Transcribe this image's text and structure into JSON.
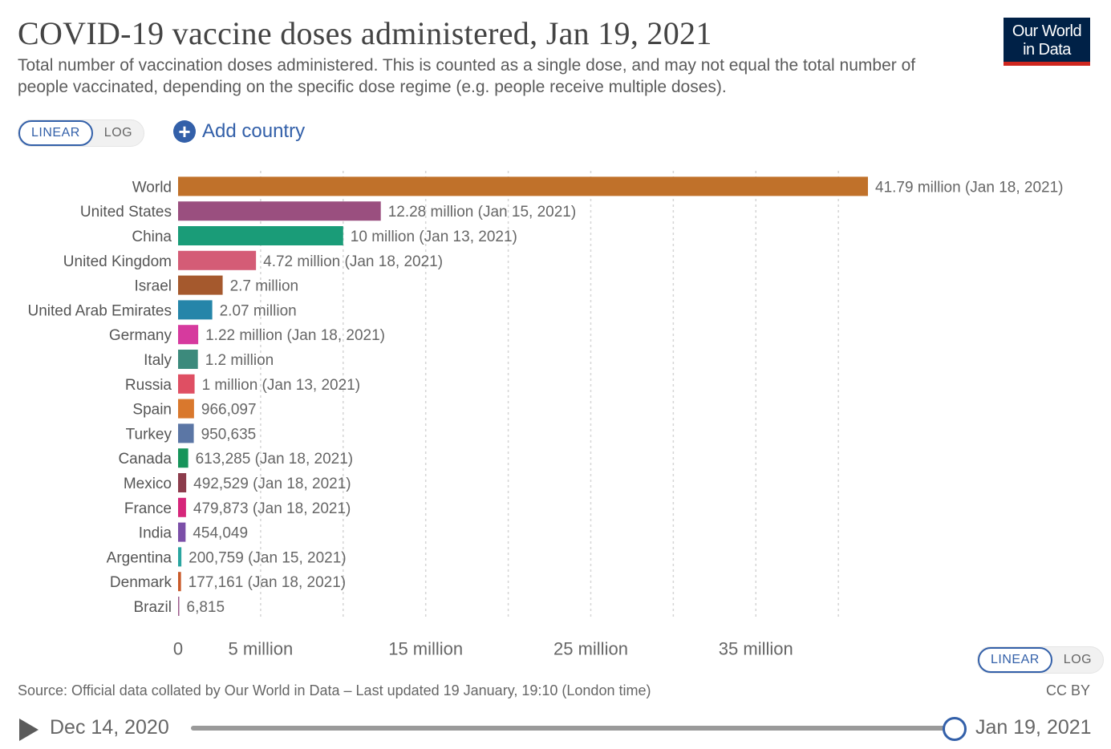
{
  "header": {
    "title": "COVID-19 vaccine doses administered, Jan 19, 2021",
    "subtitle": "Total number of vaccination doses administered. This is counted as a single dose, and may not equal the total number of people vaccinated, depending on the specific dose regime (e.g. people receive multiple doses).",
    "logo_line1": "Our World",
    "logo_line2": "in Data"
  },
  "controls": {
    "linear_label": "LINEAR",
    "log_label": "LOG",
    "add_country_label": "Add country",
    "add_icon": "plus-circle-icon"
  },
  "footer": {
    "source": "Source: Official data collated by Our World in Data – Last updated 19 January, 19:10 (London time)",
    "license": "CC BY",
    "timeline_start": "Dec 14, 2020",
    "timeline_end": "Jan 19, 2021",
    "play_icon": "play-icon"
  },
  "chart_data": {
    "type": "bar",
    "orientation": "horizontal",
    "scale": "linear",
    "xlim": [
      0,
      41790000
    ],
    "grid": true,
    "x_ticks": [
      {
        "value": 0,
        "label": "0"
      },
      {
        "value": 5000000,
        "label": "5 million"
      },
      {
        "value": 15000000,
        "label": "15 million"
      },
      {
        "value": 25000000,
        "label": "25 million"
      },
      {
        "value": 35000000,
        "label": "35 million"
      }
    ],
    "grid_values": [
      5000000,
      10000000,
      15000000,
      20000000,
      25000000,
      30000000,
      35000000,
      40000000
    ],
    "bars": [
      {
        "category": "World",
        "value": 41790000,
        "label": "41.79 million (Jan 18, 2021)",
        "color": "#c0712a"
      },
      {
        "category": "United States",
        "value": 12280000,
        "label": "12.28 million (Jan 15, 2021)",
        "color": "#9a4f7f"
      },
      {
        "category": "China",
        "value": 10000000,
        "label": "10 million (Jan 13, 2021)",
        "color": "#1a9c78"
      },
      {
        "category": "United Kingdom",
        "value": 4720000,
        "label": "4.72 million (Jan 18, 2021)",
        "color": "#d45c76"
      },
      {
        "category": "Israel",
        "value": 2700000,
        "label": "2.7 million",
        "color": "#a5592d"
      },
      {
        "category": "United Arab Emirates",
        "value": 2070000,
        "label": "2.07 million",
        "color": "#2585a9"
      },
      {
        "category": "Germany",
        "value": 1220000,
        "label": "1.22 million (Jan 18, 2021)",
        "color": "#d63a9e"
      },
      {
        "category": "Italy",
        "value": 1200000,
        "label": "1.2 million",
        "color": "#3c8a7c"
      },
      {
        "category": "Russia",
        "value": 1000000,
        "label": "1 million (Jan 13, 2021)",
        "color": "#df4f63"
      },
      {
        "category": "Spain",
        "value": 966097,
        "label": "966,097",
        "color": "#d9782d"
      },
      {
        "category": "Turkey",
        "value": 950635,
        "label": "950,635",
        "color": "#5b76a5"
      },
      {
        "category": "Canada",
        "value": 613285,
        "label": "613,285 (Jan 18, 2021)",
        "color": "#17945a"
      },
      {
        "category": "Mexico",
        "value": 492529,
        "label": "492,529 (Jan 18, 2021)",
        "color": "#8c3c4c"
      },
      {
        "category": "France",
        "value": 479873,
        "label": "479,873 (Jan 18, 2021)",
        "color": "#d6267a"
      },
      {
        "category": "India",
        "value": 454049,
        "label": "454,049",
        "color": "#7b4fa8"
      },
      {
        "category": "Argentina",
        "value": 200759,
        "label": "200,759 (Jan 15, 2021)",
        "color": "#2aa5a0"
      },
      {
        "category": "Denmark",
        "value": 177161,
        "label": "177,161 (Jan 18, 2021)",
        "color": "#c95a2a"
      },
      {
        "category": "Brazil",
        "value": 6815,
        "label": "6,815",
        "color": "#9c5c8c"
      }
    ]
  }
}
